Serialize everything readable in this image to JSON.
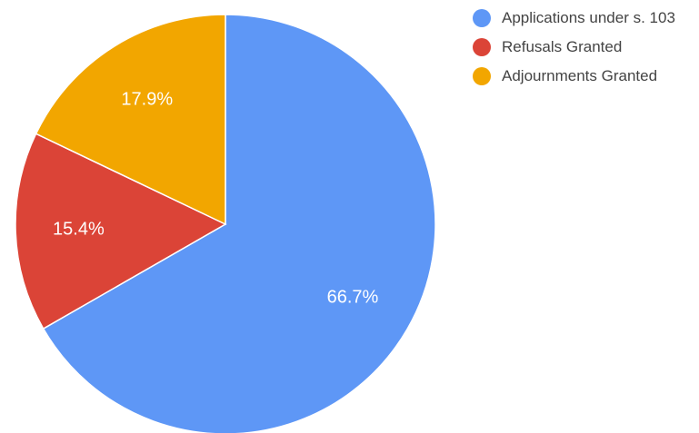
{
  "chart_data": {
    "type": "pie",
    "categories": [
      "Applications under s. 103",
      "Refusals Granted",
      "Adjournments Granted"
    ],
    "values": [
      66.7,
      15.4,
      17.9
    ],
    "value_labels": [
      "66.7%",
      "15.4%",
      "17.9%"
    ],
    "colors": [
      "#5e97f6",
      "#db4437",
      "#f2a600"
    ],
    "legend": "right"
  }
}
